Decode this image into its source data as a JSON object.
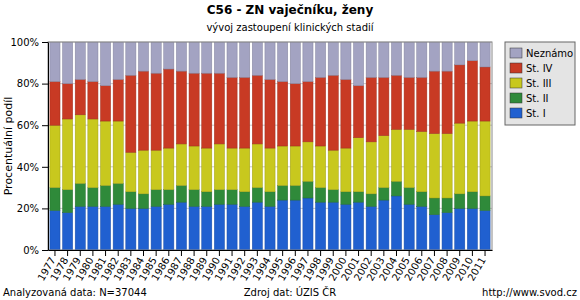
{
  "chart_data": {
    "type": "bar",
    "title": "C56 - ZN vaječníku, ženy",
    "subtitle": "vývoj zastoupení klinických stadií",
    "y_label": "Procentuální podíl",
    "annotations": [
      "Analyzovaná data: N=37044",
      "Zdroj dat: ÚZIS ČR",
      "http://www.svod.cz"
    ],
    "stacked": true,
    "grid": true,
    "legend": "right",
    "categories": [
      "1977",
      "1978",
      "1979",
      "1980",
      "1981",
      "1982",
      "1983",
      "1984",
      "1985",
      "1986",
      "1987",
      "1988",
      "1989",
      "1990",
      "1991",
      "1992",
      "1993",
      "1994",
      "1995",
      "1996",
      "1997",
      "1998",
      "1999",
      "2000",
      "2001",
      "2002",
      "2003",
      "2004",
      "2005",
      "2006",
      "2007",
      "2008",
      "2009",
      "2010",
      "2011"
    ],
    "series": [
      {
        "name": "St. I",
        "color": "#2060d0",
        "values": [
          19,
          18,
          21,
          21,
          21,
          22,
          20,
          20,
          21,
          22,
          23,
          21,
          21,
          22,
          22,
          21,
          23,
          21,
          24,
          24,
          25,
          23,
          23,
          22,
          23,
          21,
          24,
          26,
          22,
          21,
          17,
          18,
          20,
          20,
          19
        ]
      },
      {
        "name": "St. II",
        "color": "#2f8a3a",
        "values": [
          11,
          11,
          11,
          9,
          10,
          10,
          8,
          7,
          8,
          7,
          8,
          8,
          7,
          7,
          7,
          7,
          7,
          7,
          7,
          7,
          8,
          7,
          6,
          6,
          5,
          6,
          6,
          7,
          8,
          7,
          8,
          7,
          7,
          8,
          7
        ]
      },
      {
        "name": "St. III",
        "color": "#c8c81e",
        "values": [
          30,
          34,
          33,
          33,
          31,
          30,
          19,
          21,
          19,
          20,
          20,
          21,
          21,
          22,
          20,
          21,
          21,
          21,
          19,
          19,
          19,
          20,
          19,
          21,
          26,
          25,
          25,
          25,
          28,
          29,
          31,
          31,
          34,
          34,
          36
        ]
      },
      {
        "name": "St. IV",
        "color": "#c83a24",
        "values": [
          21,
          17,
          17,
          18,
          17,
          20,
          37,
          38,
          37,
          38,
          35,
          35,
          36,
          34,
          34,
          34,
          33,
          33,
          31,
          30,
          29,
          33,
          36,
          33,
          25,
          31,
          28,
          26,
          25,
          26,
          30,
          30,
          28,
          29,
          26
        ]
      },
      {
        "name": "Neznámo",
        "color": "#a3a3c2",
        "values": [
          19,
          20,
          18,
          19,
          21,
          18,
          16,
          14,
          15,
          13,
          14,
          15,
          15,
          15,
          17,
          17,
          16,
          18,
          19,
          20,
          19,
          17,
          16,
          18,
          21,
          17,
          17,
          16,
          17,
          17,
          14,
          14,
          11,
          9,
          12
        ]
      }
    ],
    "ylim": [
      0,
      100
    ],
    "yticks": [
      {
        "value": 0,
        "label": "0%"
      },
      {
        "value": 20,
        "label": "20%"
      },
      {
        "value": 40,
        "label": "40%"
      },
      {
        "value": 60,
        "label": "60%"
      },
      {
        "value": 80,
        "label": "80%"
      },
      {
        "value": 100,
        "label": "100%"
      }
    ]
  }
}
